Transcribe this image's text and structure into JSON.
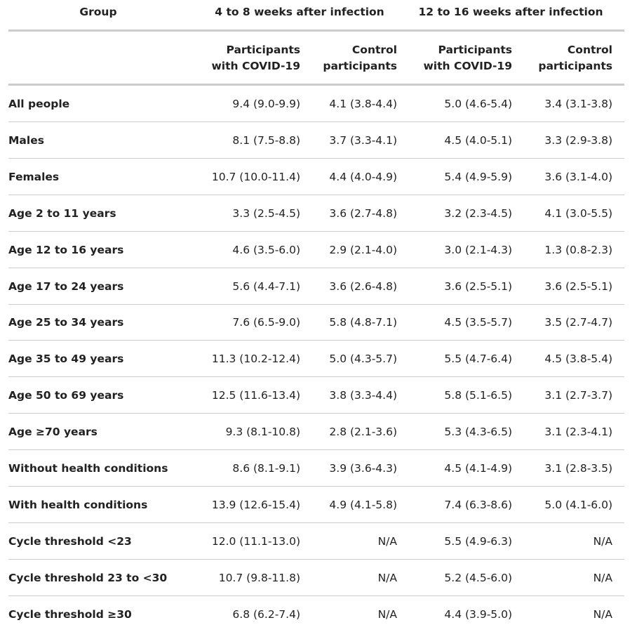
{
  "table": {
    "group_header": "Group",
    "spans": [
      "4 to 8 weeks after infection",
      "12 to 16 weeks after infection"
    ],
    "columns": [
      [
        "Participants",
        "with COVID-19"
      ],
      [
        "Control",
        "participants"
      ],
      [
        "Participants",
        "with COVID-19"
      ],
      [
        "Control",
        "participants"
      ]
    ],
    "rows": [
      [
        "All people",
        "9.4 (9.0-9.9)",
        "4.1 (3.8-4.4)",
        "5.0 (4.6-5.4)",
        "3.4 (3.1-3.8)"
      ],
      [
        "Males",
        "8.1 (7.5-8.8)",
        "3.7 (3.3-4.1)",
        "4.5 (4.0-5.1)",
        "3.3 (2.9-3.8)"
      ],
      [
        "Females",
        "10.7 (10.0-11.4)",
        "4.4 (4.0-4.9)",
        "5.4 (4.9-5.9)",
        "3.6 (3.1-4.0)"
      ],
      [
        "Age 2 to 11 years",
        "3.3 (2.5-4.5)",
        "3.6 (2.7-4.8)",
        "3.2 (2.3-4.5)",
        "4.1 (3.0-5.5)"
      ],
      [
        "Age 12 to 16 years",
        "4.6 (3.5-6.0)",
        "2.9 (2.1-4.0)",
        "3.0 (2.1-4.3)",
        "1.3 (0.8-2.3)"
      ],
      [
        "Age 17 to 24 years",
        "5.6 (4.4-7.1)",
        "3.6 (2.6-4.8)",
        "3.6 (2.5-5.1)",
        "3.6 (2.5-5.1)"
      ],
      [
        "Age 25 to 34 years",
        "7.6 (6.5-9.0)",
        "5.8 (4.8-7.1)",
        "4.5 (3.5-5.7)",
        "3.5 (2.7-4.7)"
      ],
      [
        "Age 35 to 49 years",
        "11.3 (10.2-12.4)",
        "5.0 (4.3-5.7)",
        "5.5 (4.7-6.4)",
        "4.5 (3.8-5.4)"
      ],
      [
        "Age 50 to 69 years",
        "12.5 (11.6-13.4)",
        "3.8 (3.3-4.4)",
        "5.8 (5.1-6.5)",
        "3.1 (2.7-3.7)"
      ],
      [
        "Age ≥70 years",
        "9.3 (8.1-10.8)",
        "2.8 (2.1-3.6)",
        "5.3 (4.3-6.5)",
        "3.1 (2.3-4.1)"
      ],
      [
        "Without health conditions",
        "8.6 (8.1-9.1)",
        "3.9 (3.6-4.3)",
        "4.5 (4.1-4.9)",
        "3.1 (2.8-3.5)"
      ],
      [
        "With health conditions",
        "13.9 (12.6-15.4)",
        "4.9 (4.1-5.8)",
        "7.4 (6.3-8.6)",
        "5.0 (4.1-6.0)"
      ],
      [
        "Cycle threshold <23",
        "12.0 (11.1-13.0)",
        "N/A",
        "5.5 (4.9-6.3)",
        "N/A"
      ],
      [
        "Cycle threshold 23 to <30",
        "10.7 (9.8-11.8)",
        "N/A",
        "5.2 (4.5-6.0)",
        "N/A"
      ],
      [
        "Cycle threshold ≥30",
        "6.8 (6.2-7.4)",
        "N/A",
        "4.4 (3.9-5.0)",
        "N/A"
      ]
    ]
  }
}
